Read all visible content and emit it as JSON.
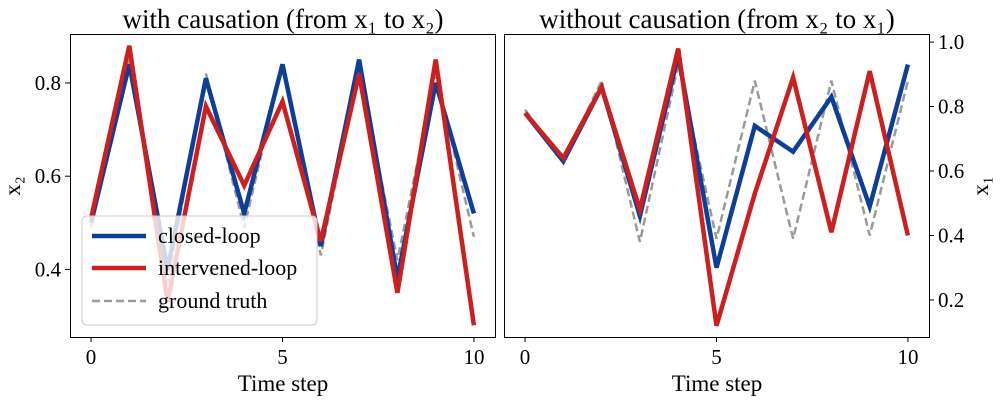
{
  "chart_data": [
    {
      "type": "line",
      "title": "with causation (from x₁ to x₂)",
      "xlabel": "Time step",
      "ylabel": "x₂",
      "ylabel_side": "left",
      "xlim": [
        -0.55,
        10.55
      ],
      "ylim": [
        0.255,
        0.905
      ],
      "xticks": [
        0,
        5,
        10
      ],
      "yticks": [
        0.4,
        0.6,
        0.8
      ],
      "grid": false,
      "legend_placement": "lower-left",
      "x": [
        0,
        1,
        2,
        3,
        4,
        5,
        6,
        7,
        8,
        9,
        10
      ],
      "series": [
        {
          "name": "closed-loop",
          "color": "#0d3f9a",
          "style": "solid",
          "values": [
            0.5,
            0.84,
            0.4,
            0.81,
            0.52,
            0.84,
            0.45,
            0.85,
            0.38,
            0.8,
            0.52
          ]
        },
        {
          "name": "intervened-loop",
          "color": "#cd1f1f",
          "style": "solid",
          "values": [
            0.51,
            0.88,
            0.33,
            0.75,
            0.58,
            0.76,
            0.46,
            0.82,
            0.35,
            0.85,
            0.28
          ]
        },
        {
          "name": "ground truth",
          "color": "#9a9a9a",
          "style": "dashed",
          "values": [
            0.49,
            0.85,
            0.37,
            0.82,
            0.49,
            0.84,
            0.43,
            0.83,
            0.42,
            0.82,
            0.47
          ]
        }
      ]
    },
    {
      "type": "line",
      "title": "without causation (from x₂ to x₁)",
      "xlabel": "Time step",
      "ylabel": "x₁",
      "ylabel_side": "right",
      "xlim": [
        -0.55,
        10.55
      ],
      "ylim": [
        0.085,
        1.025
      ],
      "xticks": [
        0,
        5,
        10
      ],
      "yticks": [
        0.2,
        0.4,
        0.6,
        0.8,
        1.0
      ],
      "grid": false,
      "x": [
        0,
        1,
        2,
        3,
        4,
        5,
        6,
        7,
        8,
        9,
        10
      ],
      "series": [
        {
          "name": "closed-loop",
          "color": "#0d3f9a",
          "style": "solid",
          "values": [
            0.78,
            0.63,
            0.86,
            0.46,
            0.96,
            0.3,
            0.74,
            0.66,
            0.83,
            0.49,
            0.93
          ]
        },
        {
          "name": "intervened-loop",
          "color": "#cd1f1f",
          "style": "solid",
          "values": [
            0.78,
            0.64,
            0.86,
            0.48,
            0.98,
            0.12,
            0.53,
            0.89,
            0.41,
            0.91,
            0.4
          ]
        },
        {
          "name": "ground truth",
          "color": "#9a9a9a",
          "style": "dashed",
          "values": [
            0.79,
            0.63,
            0.88,
            0.38,
            0.93,
            0.39,
            0.88,
            0.39,
            0.88,
            0.4,
            0.88
          ]
        }
      ]
    }
  ]
}
